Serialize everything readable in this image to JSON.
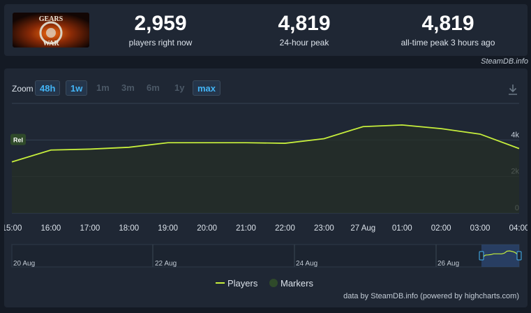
{
  "stats": [
    {
      "value": "2,959",
      "label": "players right now"
    },
    {
      "value": "4,819",
      "label": "24-hour peak"
    },
    {
      "value": "4,819",
      "label": "all-time peak 3 hours ago"
    }
  ],
  "game_image": {
    "alt_text": "GEARS OF WAR"
  },
  "credit_top": "SteamDB.info",
  "zoom": {
    "label": "Zoom",
    "buttons": [
      {
        "label": "48h",
        "state": "active"
      },
      {
        "label": "1w",
        "state": "active"
      },
      {
        "label": "1m",
        "state": "disabled"
      },
      {
        "label": "3m",
        "state": "disabled"
      },
      {
        "label": "6m",
        "state": "disabled"
      },
      {
        "label": "1y",
        "state": "disabled"
      },
      {
        "label": "max",
        "state": "active"
      }
    ]
  },
  "download_icon": "download-icon",
  "chart_data": {
    "type": "line",
    "x": [
      "15:00",
      "16:00",
      "17:00",
      "18:00",
      "19:00",
      "20:00",
      "21:00",
      "22:00",
      "23:00",
      "27 Aug",
      "01:00",
      "02:00",
      "03:00",
      "04:00"
    ],
    "series": [
      {
        "name": "Players",
        "values": [
          2800,
          3450,
          3500,
          3600,
          3850,
          3850,
          3850,
          3820,
          4070,
          4730,
          4819,
          4620,
          4320,
          3530
        ]
      }
    ],
    "yticks": [
      "0",
      "2k",
      "4k"
    ],
    "ylim": [
      0,
      6000
    ],
    "marker_label": "Rel",
    "navigator_labels": [
      "20 Aug",
      "22 Aug",
      "24 Aug",
      "26 Aug"
    ],
    "legend": [
      "Players",
      "Markers"
    ],
    "colors": {
      "line": "#c6ee3c",
      "marker": "#2f4a2a",
      "grid": "#344252"
    }
  },
  "credit_bottom": "data by SteamDB.info (powered by highcharts.com)"
}
